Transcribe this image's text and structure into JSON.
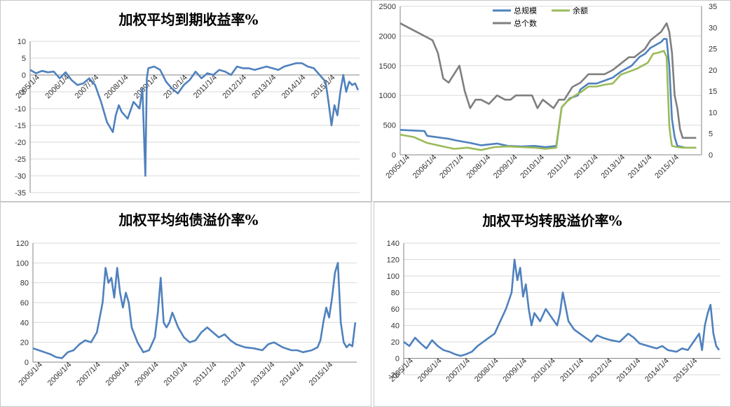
{
  "colors": {
    "blue": "#4f81bd",
    "green": "#9bbb59",
    "gray": "#7f7f7f",
    "grid": "#d9d9d9",
    "axis": "#868686"
  },
  "chart_data": [
    {
      "id": "ytm",
      "type": "line",
      "title": "加权平均到期收益率%",
      "xlabels": [
        "2005/1/4",
        "2006/1/4",
        "2007/1/4",
        "2008/1/4",
        "2009/1/4",
        "2010/1/4",
        "2011/1/4",
        "2012/1/4",
        "2013/1/4",
        "2014/1/4",
        "2015/1/4"
      ],
      "x_start": 2005.0,
      "x_end": 2016.15,
      "ylim": [
        -35,
        10
      ],
      "yticks": [
        10,
        5,
        0,
        -5,
        -10,
        -15,
        -20,
        -25,
        -30,
        -35
      ],
      "series": [
        {
          "name": "加权平均到期收益率",
          "color": "#4f81bd",
          "x": [
            2005.0,
            2005.2,
            2005.4,
            2005.6,
            2005.8,
            2006.0,
            2006.2,
            2006.4,
            2006.6,
            2006.8,
            2007.0,
            2007.2,
            2007.4,
            2007.6,
            2007.8,
            2007.9,
            2008.0,
            2008.1,
            2008.3,
            2008.5,
            2008.7,
            2008.8,
            2008.9,
            2008.95,
            2009.0,
            2009.2,
            2009.4,
            2009.6,
            2009.8,
            2010.0,
            2010.2,
            2010.4,
            2010.6,
            2010.8,
            2011.0,
            2011.2,
            2011.4,
            2011.6,
            2011.8,
            2012.0,
            2012.2,
            2012.4,
            2012.6,
            2012.8,
            2013.0,
            2013.2,
            2013.4,
            2013.6,
            2013.8,
            2014.0,
            2014.2,
            2014.4,
            2014.6,
            2014.8,
            2015.0,
            2015.1,
            2015.2,
            2015.3,
            2015.4,
            2015.5,
            2015.6,
            2015.7,
            2015.8,
            2015.9,
            2016.0,
            2016.1
          ],
          "y": [
            1.5,
            0.5,
            1.2,
            0.8,
            1.0,
            -1.0,
            0.8,
            -1.5,
            -3.0,
            -2.5,
            -1.0,
            -3.0,
            -8.0,
            -14.0,
            -17.0,
            -12.0,
            -9.0,
            -11.0,
            -13.0,
            -8.0,
            -10.0,
            -4.0,
            -30.0,
            -1.0,
            2.0,
            2.5,
            1.5,
            -2.0,
            -4.0,
            -5.5,
            -3.0,
            -1.5,
            1.0,
            -1.0,
            0.5,
            0.0,
            1.5,
            1.0,
            0.0,
            2.5,
            2.0,
            2.0,
            1.5,
            2.0,
            2.5,
            2.0,
            1.5,
            2.5,
            3.0,
            3.5,
            3.5,
            2.5,
            2.0,
            0.0,
            -2.0,
            -8.0,
            -15.0,
            -9.0,
            -12.0,
            -5.0,
            0.0,
            -5.0,
            -2.0,
            -3.0,
            -2.5,
            -4.5
          ]
        }
      ]
    },
    {
      "id": "scale",
      "type": "line",
      "title": "",
      "xlabels": [
        "2005/1/4",
        "2006/1/4",
        "2007/1/4",
        "2008/1/4",
        "2009/1/4",
        "2010/1/4",
        "2011/1/4",
        "2012/1/4",
        "2013/1/4",
        "2014/1/4",
        "2015/1/4"
      ],
      "x_start": 2005.0,
      "x_end": 2016.2,
      "ylim": [
        0,
        2500
      ],
      "yticks": [
        0,
        500,
        1000,
        1500,
        2000,
        2500
      ],
      "y2lim": [
        0,
        35
      ],
      "y2ticks": [
        0,
        5,
        10,
        15,
        20,
        25,
        30,
        35
      ],
      "legend": [
        "总规模",
        "余额",
        "总个数"
      ],
      "series": [
        {
          "name": "总规模",
          "color": "#4f81bd",
          "axis": "left",
          "x": [
            2005.0,
            2005.9,
            2006.0,
            2006.8,
            2007.1,
            2007.6,
            2008.0,
            2008.6,
            2009.0,
            2009.5,
            2010.0,
            2010.4,
            2010.8,
            2011.0,
            2011.3,
            2011.6,
            2011.7,
            2012.0,
            2012.3,
            2012.6,
            2012.9,
            2013.2,
            2013.6,
            2013.9,
            2014.1,
            2014.3,
            2014.5,
            2014.7,
            2014.8,
            2014.9,
            2015.0,
            2015.1,
            2015.2,
            2015.3,
            2015.5,
            2015.6,
            2016.0
          ],
          "y": [
            420,
            400,
            320,
            270,
            240,
            200,
            160,
            190,
            150,
            140,
            150,
            130,
            150,
            800,
            950,
            1000,
            1100,
            1200,
            1200,
            1250,
            1300,
            1400,
            1500,
            1650,
            1700,
            1800,
            1850,
            1900,
            1950,
            1950,
            1500,
            600,
            300,
            150,
            130,
            120,
            120
          ]
        },
        {
          "name": "余额",
          "color": "#9bbb59",
          "axis": "left",
          "x": [
            2005.0,
            2005.5,
            2006.0,
            2006.5,
            2007.0,
            2007.5,
            2008.0,
            2008.5,
            2009.0,
            2009.5,
            2010.0,
            2010.4,
            2010.8,
            2011.0,
            2011.2,
            2011.5,
            2011.7,
            2012.0,
            2012.3,
            2012.6,
            2012.9,
            2013.2,
            2013.5,
            2013.8,
            2014.0,
            2014.2,
            2014.4,
            2014.6,
            2014.8,
            2014.9,
            2015.0,
            2015.05,
            2015.1,
            2015.2,
            2015.3,
            2015.5,
            2016.0
          ],
          "y": [
            340,
            300,
            200,
            150,
            100,
            120,
            80,
            130,
            140,
            130,
            120,
            100,
            120,
            800,
            900,
            1000,
            1050,
            1150,
            1150,
            1180,
            1200,
            1350,
            1400,
            1450,
            1500,
            1550,
            1700,
            1720,
            1750,
            1650,
            500,
            300,
            150,
            140,
            130,
            120,
            120
          ]
        },
        {
          "name": "总个数",
          "color": "#7f7f7f",
          "axis": "right",
          "x": [
            2005.0,
            2005.3,
            2005.6,
            2005.9,
            2006.2,
            2006.4,
            2006.6,
            2006.8,
            2007.0,
            2007.2,
            2007.4,
            2007.6,
            2007.8,
            2008.0,
            2008.3,
            2008.6,
            2008.9,
            2009.1,
            2009.3,
            2009.6,
            2009.9,
            2010.1,
            2010.3,
            2010.5,
            2010.7,
            2010.9,
            2011.1,
            2011.4,
            2011.7,
            2012.0,
            2012.3,
            2012.6,
            2012.9,
            2013.1,
            2013.3,
            2013.5,
            2013.7,
            2013.9,
            2014.1,
            2014.3,
            2014.5,
            2014.7,
            2014.8,
            2014.9,
            2015.0,
            2015.1,
            2015.2,
            2015.3,
            2015.4,
            2015.5,
            2015.6,
            2016.0
          ],
          "y": [
            31,
            30,
            29,
            28,
            27,
            24,
            18,
            17,
            19,
            21,
            15,
            11,
            13,
            13,
            12,
            14,
            13,
            13,
            14,
            14,
            14,
            11,
            13,
            12,
            11,
            13,
            13,
            16,
            17,
            19,
            19,
            19,
            20,
            21,
            22,
            23,
            23,
            24,
            25,
            27,
            28,
            29,
            30,
            31,
            29,
            24,
            14,
            11,
            6,
            4,
            4,
            4
          ]
        }
      ]
    },
    {
      "id": "bond_premium",
      "type": "line",
      "title": "加权平均纯债溢价率%",
      "xlabels": [
        "2005/1/4",
        "2006/1/4",
        "2007/1/4",
        "2008/1/4",
        "2009/1/4",
        "2010/1/4",
        "2011/1/4",
        "2012/1/4",
        "2013/1/4",
        "2014/1/4",
        "2015/1/4"
      ],
      "x_start": 2005.0,
      "x_end": 2016.15,
      "ylim": [
        0,
        120
      ],
      "yticks": [
        0,
        20,
        40,
        60,
        80,
        100,
        120
      ],
      "series": [
        {
          "name": "加权平均纯债溢价率",
          "color": "#4f81bd",
          "x": [
            2005.0,
            2005.2,
            2005.4,
            2005.6,
            2005.8,
            2006.0,
            2006.2,
            2006.4,
            2006.6,
            2006.8,
            2007.0,
            2007.2,
            2007.4,
            2007.5,
            2007.6,
            2007.7,
            2007.8,
            2007.9,
            2008.0,
            2008.1,
            2008.2,
            2008.3,
            2008.4,
            2008.6,
            2008.8,
            2009.0,
            2009.2,
            2009.3,
            2009.4,
            2009.5,
            2009.6,
            2009.7,
            2009.8,
            2010.0,
            2010.2,
            2010.4,
            2010.6,
            2010.8,
            2011.0,
            2011.2,
            2011.4,
            2011.6,
            2011.8,
            2012.0,
            2012.3,
            2012.6,
            2012.9,
            2013.1,
            2013.3,
            2013.6,
            2013.9,
            2014.1,
            2014.3,
            2014.6,
            2014.8,
            2014.9,
            2015.0,
            2015.1,
            2015.2,
            2015.3,
            2015.4,
            2015.5,
            2015.6,
            2015.7,
            2015.8,
            2015.9,
            2016.0,
            2016.1
          ],
          "y": [
            14,
            12,
            10,
            8,
            5,
            4,
            10,
            12,
            18,
            22,
            20,
            30,
            60,
            95,
            80,
            85,
            65,
            95,
            70,
            55,
            70,
            60,
            35,
            20,
            10,
            12,
            25,
            50,
            85,
            40,
            35,
            40,
            50,
            35,
            25,
            20,
            22,
            30,
            35,
            30,
            25,
            28,
            22,
            18,
            15,
            14,
            12,
            18,
            20,
            15,
            12,
            12,
            10,
            12,
            15,
            22,
            40,
            55,
            45,
            65,
            90,
            100,
            40,
            20,
            15,
            18,
            16,
            40
          ]
        }
      ]
    },
    {
      "id": "conv_premium",
      "type": "line",
      "title": "加权平均转股溢价率%",
      "xlabels": [
        "2005/1/4",
        "2006/1/4",
        "2007/1/4",
        "2008/1/4",
        "2009/1/4",
        "2010/1/4",
        "2011/1/4",
        "2012/1/4",
        "2013/1/4",
        "2014/1/4",
        "2015/1/4"
      ],
      "x_start": 2005.0,
      "x_end": 2016.15,
      "ylim": [
        -20,
        140
      ],
      "yticks": [
        140,
        120,
        100,
        80,
        60,
        40,
        20,
        0,
        -20
      ],
      "series": [
        {
          "name": "加权平均转股溢价率",
          "color": "#4f81bd",
          "x": [
            2005.0,
            2005.2,
            2005.4,
            2005.6,
            2005.8,
            2006.0,
            2006.2,
            2006.4,
            2006.6,
            2006.8,
            2007.0,
            2007.2,
            2007.4,
            2007.6,
            2007.8,
            2008.0,
            2008.2,
            2008.4,
            2008.6,
            2008.8,
            2008.9,
            2009.0,
            2009.1,
            2009.2,
            2009.3,
            2009.4,
            2009.5,
            2009.6,
            2009.8,
            2010.0,
            2010.2,
            2010.4,
            2010.5,
            2010.6,
            2010.8,
            2011.0,
            2011.2,
            2011.4,
            2011.6,
            2011.8,
            2012.0,
            2012.3,
            2012.6,
            2012.9,
            2013.1,
            2013.3,
            2013.6,
            2013.9,
            2014.1,
            2014.3,
            2014.6,
            2014.8,
            2015.0,
            2015.2,
            2015.4,
            2015.5,
            2015.6,
            2015.7,
            2015.8,
            2015.9,
            2016.0,
            2016.1
          ],
          "y": [
            20,
            15,
            25,
            18,
            12,
            22,
            15,
            10,
            8,
            5,
            3,
            5,
            8,
            15,
            20,
            25,
            30,
            45,
            60,
            80,
            120,
            95,
            110,
            75,
            90,
            60,
            40,
            55,
            45,
            60,
            50,
            40,
            55,
            80,
            45,
            35,
            30,
            25,
            20,
            28,
            25,
            22,
            20,
            30,
            25,
            18,
            15,
            12,
            15,
            10,
            8,
            12,
            10,
            20,
            30,
            10,
            40,
            55,
            65,
            30,
            15,
            10
          ]
        }
      ]
    }
  ]
}
